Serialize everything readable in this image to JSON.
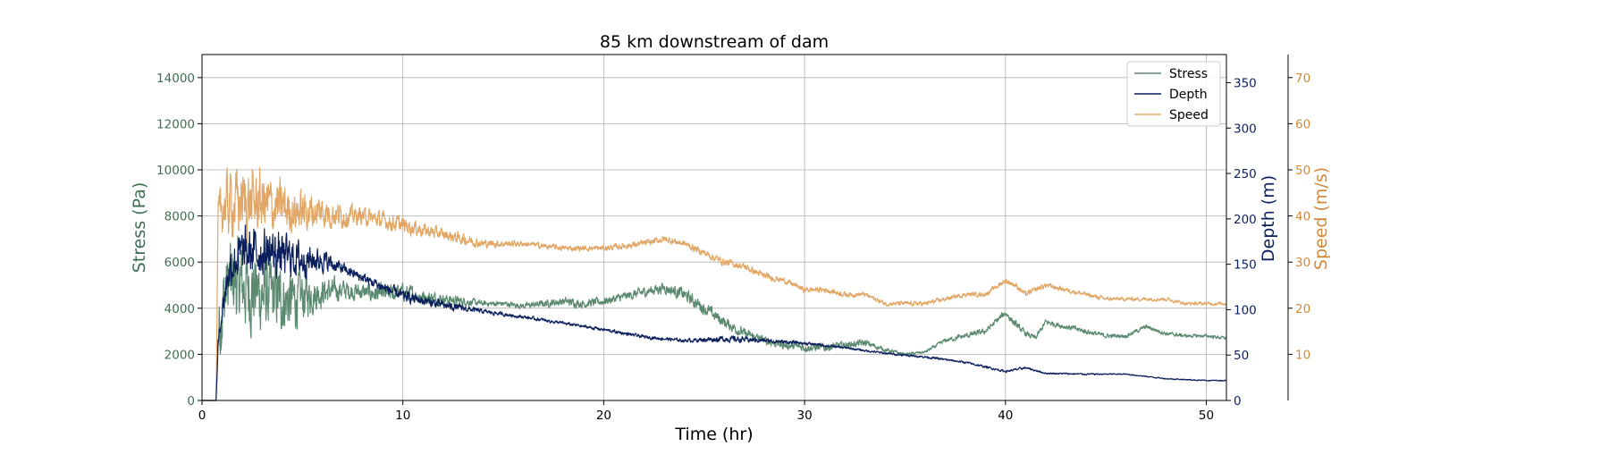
{
  "chart_data": {
    "type": "line",
    "title": "85 km downstream of dam",
    "xlabel": "Time (hr)",
    "xlim": [
      0,
      51
    ],
    "xticks": [
      0,
      10,
      20,
      30,
      40,
      50
    ],
    "grid": true,
    "legend_position": "top-right",
    "axes": {
      "stress": {
        "label": "Stress (Pa)",
        "lim": [
          0,
          15000
        ],
        "ticks": [
          0,
          2000,
          4000,
          6000,
          8000,
          10000,
          12000,
          14000
        ],
        "color": "#3f6e53"
      },
      "depth": {
        "label": "Depth (m)",
        "lim": [
          0,
          381
        ],
        "ticks": [
          0,
          50,
          100,
          150,
          200,
          250,
          300,
          350
        ],
        "color": "#0b1f5c"
      },
      "speed": {
        "label": "Speed (m/s)",
        "lim": [
          0,
          75
        ],
        "ticks": [
          10,
          20,
          30,
          40,
          50,
          60,
          70
        ],
        "color": "#d18a3c"
      }
    },
    "series": [
      {
        "name": "Stress",
        "axis": "stress",
        "color": "#5c8a70",
        "x": [
          0,
          0.7,
          0.8,
          1.0,
          1.3,
          1.6,
          2.0,
          2.5,
          3.0,
          3.5,
          4.0,
          4.5,
          5.0,
          5.5,
          6.0,
          7.0,
          8.0,
          9.0,
          10.0,
          11.0,
          12.0,
          13.0,
          14.0,
          15.0,
          16.0,
          17.0,
          18.0,
          19.0,
          20.0,
          21.0,
          22.0,
          23.0,
          24.0,
          25.0,
          26.0,
          27.0,
          28.0,
          29.0,
          30.0,
          31.0,
          32.0,
          33.0,
          34.0,
          35.0,
          36.0,
          37.0,
          38.0,
          39.0,
          40.0,
          40.5,
          41.0,
          41.5,
          42.0,
          43.0,
          44.0,
          45.0,
          46.0,
          47.0,
          48.0,
          49.0,
          50.0,
          51.0
        ],
        "y": [
          0,
          0,
          3000,
          4000,
          5000,
          5200,
          5000,
          4800,
          4600,
          4500,
          4400,
          4300,
          4500,
          4600,
          4700,
          4800,
          4700,
          4600,
          4700,
          4500,
          4400,
          4300,
          4200,
          4200,
          4100,
          4200,
          4300,
          4200,
          4300,
          4500,
          4700,
          4900,
          4600,
          4000,
          3400,
          2900,
          2600,
          2400,
          2300,
          2300,
          2400,
          2500,
          2200,
          2000,
          2100,
          2600,
          2800,
          3000,
          3800,
          3300,
          2900,
          2700,
          3400,
          3200,
          3000,
          2800,
          2800,
          3200,
          2900,
          2800,
          2800,
          2700
        ],
        "noise": [
          0,
          0,
          2500,
          3000,
          3000,
          3000,
          3000,
          3000,
          2800,
          2600,
          2400,
          2200,
          1800,
          1300,
          1000,
          700,
          600,
          700,
          600,
          500,
          400,
          300,
          200,
          200,
          200,
          250,
          300,
          300,
          300,
          300,
          350,
          400,
          450,
          450,
          400,
          350,
          300,
          300,
          300,
          300,
          250,
          250,
          150,
          100,
          100,
          150,
          200,
          200,
          250,
          250,
          200,
          200,
          200,
          200,
          200,
          150,
          150,
          150,
          150,
          120,
          120,
          120
        ]
      },
      {
        "name": "Depth",
        "axis": "depth",
        "color": "#0b1f5c",
        "x": [
          0,
          0.7,
          0.8,
          1.0,
          1.3,
          1.6,
          2.0,
          3.0,
          4.0,
          5.0,
          6.0,
          7.0,
          8.0,
          9.0,
          10.0,
          12.0,
          14.0,
          16.0,
          18.0,
          20.0,
          22.0,
          24.0,
          26.0,
          28.0,
          30.0,
          32.0,
          34.0,
          36.0,
          38.0,
          40.0,
          41.0,
          42.0,
          44.0,
          46.0,
          48.0,
          50.0,
          51.0
        ],
        "y": [
          0,
          0,
          60,
          100,
          140,
          155,
          160,
          165,
          160,
          155,
          155,
          145,
          135,
          125,
          115,
          105,
          98,
          92,
          85,
          78,
          70,
          66,
          68,
          66,
          63,
          58,
          52,
          48,
          42,
          32,
          36,
          30,
          29,
          29,
          24,
          22,
          22
        ],
        "noise": [
          0,
          0,
          10,
          20,
          30,
          40,
          45,
          45,
          40,
          30,
          20,
          10,
          9,
          10,
          10,
          8,
          4,
          3,
          3,
          3,
          3,
          3,
          6,
          4,
          3,
          2,
          2,
          2,
          2,
          2,
          2,
          1.5,
          1.5,
          1,
          1,
          1,
          1
        ]
      },
      {
        "name": "Speed",
        "axis": "speed",
        "color": "#e2a766",
        "x": [
          0,
          0.7,
          0.8,
          1.0,
          1.5,
          2.0,
          2.5,
          3.0,
          3.5,
          4.0,
          4.5,
          5.0,
          6.0,
          7.0,
          8.0,
          9.0,
          10.0,
          11.0,
          12.0,
          13.0,
          14.0,
          16.0,
          18.0,
          20.0,
          22.0,
          23.0,
          24.0,
          25.0,
          26.0,
          27.0,
          28.0,
          29.0,
          30.0,
          31.0,
          32.0,
          33.0,
          34.0,
          35.0,
          36.0,
          37.0,
          38.0,
          39.0,
          40.0,
          40.5,
          41.0,
          42.0,
          43.0,
          44.0,
          45.0,
          46.0,
          47.0,
          48.0,
          49.0,
          50.0,
          51.0
        ],
        "y": [
          0,
          0,
          38,
          42,
          43,
          43,
          43,
          43,
          42,
          42,
          41,
          41,
          41,
          40,
          40,
          39,
          38,
          37,
          36,
          35,
          34,
          34,
          33,
          33,
          34,
          35,
          34,
          32,
          30,
          29,
          27,
          26,
          24,
          24,
          23,
          23,
          21,
          21,
          21,
          22,
          23,
          23,
          26,
          25,
          23,
          25,
          24,
          23,
          22,
          22,
          22,
          22,
          21,
          21,
          21
        ],
        "noise": [
          0,
          0,
          8,
          10,
          12,
          12,
          12,
          11,
          10,
          9,
          8,
          7,
          6,
          4,
          3,
          3,
          3,
          2.5,
          2,
          2,
          1.5,
          1,
          1,
          1,
          1.2,
          1.2,
          1.2,
          1.3,
          1.3,
          1.2,
          1.2,
          1,
          1,
          1,
          1,
          0.8,
          0.8,
          0.8,
          0.8,
          0.8,
          0.8,
          0.8,
          1,
          1,
          1,
          1,
          0.8,
          0.8,
          0.7,
          0.7,
          0.7,
          0.7,
          0.6,
          0.6,
          0.6
        ]
      }
    ]
  }
}
